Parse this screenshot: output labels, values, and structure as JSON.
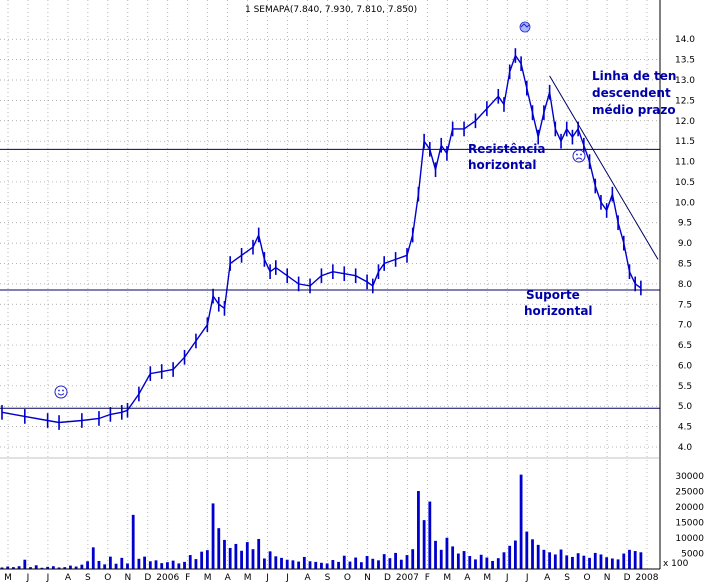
{
  "chart_data": {
    "type": "bar",
    "title": "1 SEMAPA(7.840, 7.930, 7.810, 7.850)",
    "price_axis": {
      "ylim": [
        4.0,
        14.3
      ],
      "ticks": [
        "4.0",
        "4.5",
        "5.0",
        "5.5",
        "6.0",
        "6.5",
        "7.0",
        "7.5",
        "8.0",
        "8.5",
        "9.0",
        "9.5",
        "10.0",
        "10.5",
        "11.0",
        "11.5",
        "12.0",
        "12.5",
        "13.0",
        "13.5",
        "14.0"
      ]
    },
    "volume_axis": {
      "ylim": [
        0,
        32000
      ],
      "ticks": [
        "5000",
        "10000",
        "15000",
        "20000",
        "25000",
        "30000"
      ],
      "unit_label": "x 100"
    },
    "time_axis": {
      "labels": [
        "M",
        "J",
        "J",
        "A",
        "S",
        "O",
        "N",
        "D",
        "2006",
        "F",
        "M",
        "A",
        "M",
        "J",
        "J",
        "A",
        "S",
        "O",
        "N",
        "D",
        "2007",
        "F",
        "M",
        "A",
        "M",
        "J",
        "J",
        "A",
        "S",
        "O",
        "N",
        "D",
        "2008"
      ]
    },
    "grid": true,
    "price_series": [
      [
        0,
        4.85
      ],
      [
        4,
        4.75
      ],
      [
        8,
        4.65
      ],
      [
        10,
        4.6
      ],
      [
        14,
        4.65
      ],
      [
        17,
        4.7
      ],
      [
        19,
        4.8
      ],
      [
        21,
        4.85
      ],
      [
        22,
        4.9
      ],
      [
        24,
        5.3
      ],
      [
        26,
        5.8
      ],
      [
        28,
        5.85
      ],
      [
        30,
        5.9
      ],
      [
        32,
        6.2
      ],
      [
        34,
        6.6
      ],
      [
        36,
        7.0
      ],
      [
        37,
        7.7
      ],
      [
        38,
        7.5
      ],
      [
        39,
        7.4
      ],
      [
        40,
        8.5
      ],
      [
        42,
        8.7
      ],
      [
        44,
        8.9
      ],
      [
        45,
        9.2
      ],
      [
        46,
        8.6
      ],
      [
        47,
        8.3
      ],
      [
        48,
        8.4
      ],
      [
        50,
        8.2
      ],
      [
        52,
        8.0
      ],
      [
        54,
        7.95
      ],
      [
        56,
        8.2
      ],
      [
        58,
        8.3
      ],
      [
        60,
        8.25
      ],
      [
        62,
        8.2
      ],
      [
        64,
        8.05
      ],
      [
        65,
        7.95
      ],
      [
        66,
        8.3
      ],
      [
        67,
        8.5
      ],
      [
        69,
        8.6
      ],
      [
        71,
        8.7
      ],
      [
        72,
        9.2
      ],
      [
        73,
        10.2
      ],
      [
        74,
        11.5
      ],
      [
        75,
        11.3
      ],
      [
        76,
        10.8
      ],
      [
        77,
        11.4
      ],
      [
        78,
        11.2
      ],
      [
        79,
        11.8
      ],
      [
        81,
        11.8
      ],
      [
        83,
        12.0
      ],
      [
        85,
        12.3
      ],
      [
        87,
        12.6
      ],
      [
        88,
        12.4
      ],
      [
        89,
        13.2
      ],
      [
        90,
        13.6
      ],
      [
        91,
        13.4
      ],
      [
        92,
        12.8
      ],
      [
        93,
        12.2
      ],
      [
        94,
        11.6
      ],
      [
        95,
        12.2
      ],
      [
        96,
        12.7
      ],
      [
        97,
        11.8
      ],
      [
        98,
        11.5
      ],
      [
        99,
        11.8
      ],
      [
        100,
        11.6
      ],
      [
        101,
        11.8
      ],
      [
        102,
        11.4
      ],
      [
        103,
        11.0
      ],
      [
        104,
        10.4
      ],
      [
        105,
        10.0
      ],
      [
        106,
        9.8
      ],
      [
        107,
        10.2
      ],
      [
        108,
        9.5
      ],
      [
        109,
        9.0
      ],
      [
        110,
        8.3
      ],
      [
        111,
        8.0
      ],
      [
        112,
        7.9
      ]
    ],
    "volume_series": [
      [
        0,
        500
      ],
      [
        1,
        800
      ],
      [
        2,
        600
      ],
      [
        3,
        900
      ],
      [
        4,
        3000
      ],
      [
        5,
        600
      ],
      [
        6,
        1200
      ],
      [
        7,
        400
      ],
      [
        8,
        700
      ],
      [
        9,
        900
      ],
      [
        10,
        500
      ],
      [
        11,
        600
      ],
      [
        12,
        1100
      ],
      [
        13,
        800
      ],
      [
        14,
        1400
      ],
      [
        15,
        2500
      ],
      [
        16,
        7000
      ],
      [
        17,
        2600
      ],
      [
        18,
        1500
      ],
      [
        19,
        4000
      ],
      [
        20,
        1700
      ],
      [
        21,
        3600
      ],
      [
        22,
        1800
      ],
      [
        23,
        17500
      ],
      [
        24,
        3300
      ],
      [
        25,
        4000
      ],
      [
        26,
        2500
      ],
      [
        27,
        2800
      ],
      [
        28,
        1900
      ],
      [
        29,
        2200
      ],
      [
        30,
        2700
      ],
      [
        31,
        1800
      ],
      [
        32,
        2300
      ],
      [
        33,
        4500
      ],
      [
        34,
        3200
      ],
      [
        35,
        5600
      ],
      [
        36,
        6100
      ],
      [
        37,
        21200
      ],
      [
        38,
        13200
      ],
      [
        39,
        9400
      ],
      [
        40,
        6800
      ],
      [
        41,
        8100
      ],
      [
        42,
        5900
      ],
      [
        43,
        8700
      ],
      [
        44,
        6400
      ],
      [
        45,
        9700
      ],
      [
        46,
        3400
      ],
      [
        47,
        5700
      ],
      [
        48,
        4100
      ],
      [
        49,
        3600
      ],
      [
        50,
        3000
      ],
      [
        51,
        2800
      ],
      [
        52,
        2400
      ],
      [
        53,
        3900
      ],
      [
        54,
        2500
      ],
      [
        55,
        2300
      ],
      [
        56,
        2000
      ],
      [
        57,
        1800
      ],
      [
        58,
        2900
      ],
      [
        59,
        2300
      ],
      [
        60,
        4300
      ],
      [
        61,
        2400
      ],
      [
        62,
        3700
      ],
      [
        63,
        2200
      ],
      [
        64,
        4200
      ],
      [
        65,
        3300
      ],
      [
        66,
        2800
      ],
      [
        67,
        4800
      ],
      [
        68,
        3500
      ],
      [
        69,
        5200
      ],
      [
        70,
        3000
      ],
      [
        71,
        4500
      ],
      [
        72,
        6400
      ],
      [
        73,
        25200
      ],
      [
        74,
        15800
      ],
      [
        75,
        21800
      ],
      [
        76,
        9100
      ],
      [
        77,
        6200
      ],
      [
        78,
        10100
      ],
      [
        79,
        7300
      ],
      [
        80,
        5000
      ],
      [
        81,
        5800
      ],
      [
        82,
        4200
      ],
      [
        83,
        3100
      ],
      [
        84,
        4600
      ],
      [
        85,
        3700
      ],
      [
        86,
        2600
      ],
      [
        87,
        3500
      ],
      [
        88,
        5400
      ],
      [
        89,
        7500
      ],
      [
        90,
        9200
      ],
      [
        91,
        30500
      ],
      [
        92,
        12100
      ],
      [
        93,
        9600
      ],
      [
        94,
        7800
      ],
      [
        95,
        6200
      ],
      [
        96,
        5400
      ],
      [
        97,
        4700
      ],
      [
        98,
        6300
      ],
      [
        99,
        4400
      ],
      [
        100,
        3900
      ],
      [
        101,
        5100
      ],
      [
        102,
        4300
      ],
      [
        103,
        3600
      ],
      [
        104,
        5200
      ],
      [
        105,
        4700
      ],
      [
        106,
        3800
      ],
      [
        107,
        3400
      ],
      [
        108,
        3100
      ],
      [
        109,
        5000
      ],
      [
        110,
        6200
      ],
      [
        111,
        5800
      ],
      [
        112,
        5400
      ]
    ],
    "horizontal_lines": [
      {
        "name": "Resistência horizontal",
        "value": 11.3
      },
      {
        "name": "Suporte horizontal",
        "value": 7.85
      },
      {
        "value": 4.95
      }
    ],
    "trend_line": {
      "name": "Linha de tendência descendente de médio prazo",
      "from": [
        96,
        13.1
      ],
      "to": [
        115,
        8.6
      ]
    },
    "annotations": {
      "resistance": [
        "Resistência",
        "horizontal"
      ],
      "support": [
        "Suporte",
        "horizontal"
      ],
      "trend": [
        "Linha de ten",
        "descendent",
        "médio prazo"
      ]
    },
    "colors": {
      "series": "#0000cc",
      "lines": "#000066",
      "annotation_text": "#0000aa",
      "smiley": "#2222cc",
      "sad": "#2222cc"
    }
  }
}
